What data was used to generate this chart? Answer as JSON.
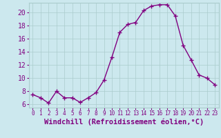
{
  "x": [
    0,
    1,
    2,
    3,
    4,
    5,
    6,
    7,
    8,
    9,
    10,
    11,
    12,
    13,
    14,
    15,
    16,
    17,
    18,
    19,
    20,
    21,
    22,
    23
  ],
  "y": [
    7.5,
    7.0,
    6.2,
    8.0,
    7.0,
    7.0,
    6.3,
    7.0,
    7.8,
    9.7,
    13.2,
    17.0,
    18.2,
    18.5,
    20.3,
    21.0,
    21.2,
    21.2,
    19.5,
    15.0,
    12.8,
    10.5,
    10.0,
    9.0
  ],
  "line_color": "#800080",
  "marker": "D",
  "marker_size": 2.5,
  "bg_color": "#cce8ee",
  "grid_color": "#aacccc",
  "xlabel": "Windchill (Refroidissement éolien,°C)",
  "ylabel": "",
  "xlim": [
    -0.5,
    23.5
  ],
  "ylim": [
    5.5,
    21.5
  ],
  "yticks": [
    6,
    8,
    10,
    12,
    14,
    16,
    18,
    20
  ],
  "xticks": [
    0,
    1,
    2,
    3,
    4,
    5,
    6,
    7,
    8,
    9,
    10,
    11,
    12,
    13,
    14,
    15,
    16,
    17,
    18,
    19,
    20,
    21,
    22,
    23
  ],
  "xlabel_fontsize": 7.5,
  "ytick_fontsize": 7,
  "xtick_fontsize": 5.5,
  "line_width": 1.0
}
